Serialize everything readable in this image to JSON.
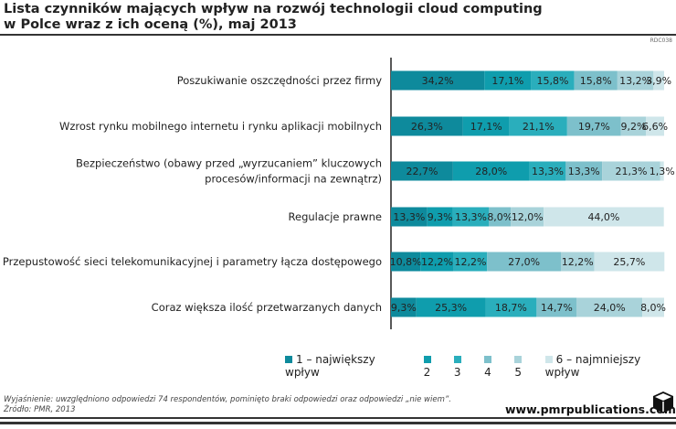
{
  "title_lines": [
    "Lista czynników mających wpływ na rozwój technologii cloud computing",
    "w Polce wraz z ich oceną (%), maj 2013"
  ],
  "code": "RDC038",
  "chart_data": {
    "type": "bar",
    "orientation": "horizontal",
    "stacked": true,
    "xlim": [
      0,
      100
    ],
    "categories": [
      [
        "Poszukiwanie oszczędności przez firmy"
      ],
      [
        "Wzrost rynku mobilnego internetu i rynku aplikacji mobilnych"
      ],
      [
        "Bezpieczeństwo (obawy przed „wyrzucaniem” kluczowych",
        "procesów/informacji na zewnątrz)"
      ],
      [
        "Regulacje prawne"
      ],
      [
        "Przepustowość sieci telekomunikacyjnej i parametry łącza dostępowego"
      ],
      [
        "Coraz większa ilość przetwarzanych danych"
      ]
    ],
    "series": [
      {
        "name": "1 – największy wpływ",
        "color": "#0e8a9c",
        "values": [
          34.2,
          26.3,
          22.7,
          13.3,
          10.8,
          9.3
        ]
      },
      {
        "name": "2",
        "color": "#0f9dad",
        "values": [
          17.1,
          17.1,
          28.0,
          9.3,
          12.2,
          25.3
        ]
      },
      {
        "name": "3",
        "color": "#2aaebc",
        "values": [
          15.8,
          21.1,
          13.3,
          13.3,
          12.2,
          18.7
        ]
      },
      {
        "name": "4",
        "color": "#7dc0cb",
        "values": [
          15.8,
          19.7,
          13.3,
          8.0,
          27.0,
          14.7
        ]
      },
      {
        "name": "5",
        "color": "#a9d3da",
        "values": [
          13.2,
          9.2,
          21.3,
          12.0,
          12.2,
          24.0
        ]
      },
      {
        "name": "6 – najmniejszy wpływ",
        "color": "#cfe6ea",
        "values": [
          3.9,
          6.6,
          1.3,
          44.0,
          25.7,
          8.0
        ]
      }
    ],
    "legend": "bottom"
  },
  "footnote": [
    "Wyjaśnienie: uwzględniono odpowiedzi 74 respondentów, pominięto braki odpowiedzi oraz odpowiedzi „nie wiem”.",
    "Źródło: PMR, 2013"
  ],
  "url": "www.pmrpublications.com"
}
